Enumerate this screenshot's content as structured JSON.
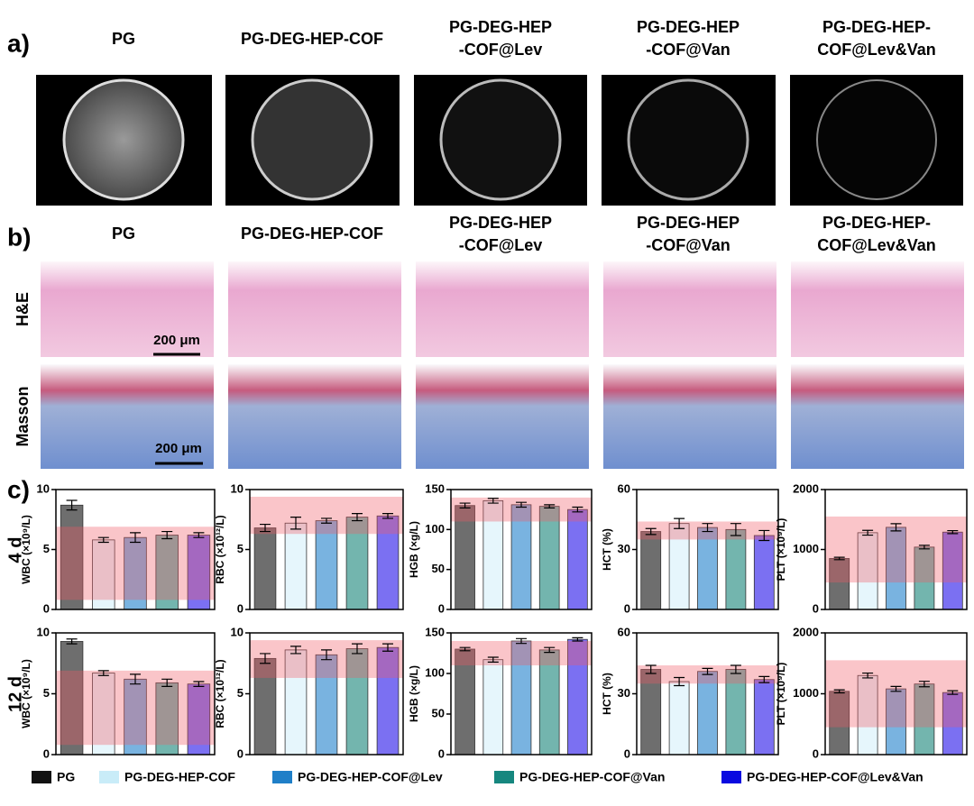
{
  "panel_labels": [
    "a)",
    "b)",
    "c)"
  ],
  "panel_a": {
    "titles": [
      [
        "PG"
      ],
      [
        "PG-DEG-HEP-COF"
      ],
      [
        "PG-DEG-HEP",
        "-COF@Lev"
      ],
      [
        "PG-DEG-HEP",
        "-COF@Van"
      ],
      [
        "PG-DEG-HEP-",
        "COF@Lev&Van"
      ]
    ]
  },
  "panel_b": {
    "titles": [
      [
        "PG"
      ],
      [
        "PG-DEG-HEP-COF"
      ],
      [
        "PG-DEG-HEP",
        "-COF@Lev"
      ],
      [
        "PG-DEG-HEP",
        "-COF@Van"
      ],
      [
        "PG-DEG-HEP-",
        "COF@Lev&Van"
      ]
    ],
    "row_labels": [
      "H&E",
      "Masson"
    ],
    "scale_bars": [
      "200 μm",
      "200 μm"
    ]
  },
  "row_labels": [
    "4 d",
    "12 d"
  ],
  "legend": [
    {
      "name": "PG",
      "color": "#111111"
    },
    {
      "name": "PG-DEG-HEP-COF",
      "color": "#c9ecf8"
    },
    {
      "name": "PG-DEG-HEP-COF@Lev",
      "color": "#1f7fc8"
    },
    {
      "name": "PG-DEG-HEP-COF@Van",
      "color": "#16877f"
    },
    {
      "name": "PG-DEG-HEP-COF@Lev&Van",
      "color": "#0a0ae0"
    }
  ],
  "chart_data": [
    {
      "type": "bar",
      "ylabel": "WBC (×10⁹/L)",
      "values": [
        8.7,
        5.8,
        6.0,
        6.2,
        6.2
      ],
      "errors": [
        0.4,
        0.2,
        0.4,
        0.3,
        0.2
      ],
      "colors": [
        "#6e6e6e",
        "#e6f6fc",
        "#79b3e0",
        "#73b5ae",
        "#7b70f2"
      ],
      "ylim": [
        0,
        10
      ],
      "yticks": [
        0,
        5,
        10
      ],
      "reference_range": [
        0.8,
        6.9
      ]
    },
    {
      "type": "bar",
      "ylabel": "RBC (×10¹²/L)",
      "values": [
        6.8,
        7.2,
        7.4,
        7.7,
        7.8
      ],
      "errors": [
        0.3,
        0.5,
        0.2,
        0.3,
        0.2
      ],
      "colors": [
        "#6e6e6e",
        "#e6f6fc",
        "#79b3e0",
        "#73b5ae",
        "#7b70f2"
      ],
      "ylim": [
        0,
        10
      ],
      "yticks": [
        0,
        5,
        10
      ],
      "reference_range": [
        6.3,
        9.4
      ]
    },
    {
      "type": "bar",
      "ylabel": "HGB (×g/L)",
      "values": [
        130,
        136,
        131,
        129,
        125
      ],
      "errors": [
        3,
        3,
        3,
        2,
        3
      ],
      "colors": [
        "#6e6e6e",
        "#e6f6fc",
        "#79b3e0",
        "#73b5ae",
        "#7b70f2"
      ],
      "ylim": [
        0,
        150
      ],
      "yticks": [
        0,
        50,
        100,
        150
      ],
      "reference_range": [
        110,
        140
      ]
    },
    {
      "type": "bar",
      "ylabel": "HCT (%)",
      "values": [
        39,
        43,
        41,
        40,
        37
      ],
      "errors": [
        1.5,
        2.5,
        2,
        3,
        2.5
      ],
      "colors": [
        "#6e6e6e",
        "#e6f6fc",
        "#79b3e0",
        "#73b5ae",
        "#7b70f2"
      ],
      "ylim": [
        0,
        60
      ],
      "yticks": [
        0,
        30,
        60
      ],
      "reference_range": [
        35,
        44
      ]
    },
    {
      "type": "bar",
      "ylabel": "PLT (×10⁹/L)",
      "values": [
        850,
        1280,
        1370,
        1040,
        1290
      ],
      "errors": [
        20,
        40,
        60,
        30,
        25
      ],
      "colors": [
        "#6e6e6e",
        "#e6f6fc",
        "#79b3e0",
        "#73b5ae",
        "#7b70f2"
      ],
      "ylim": [
        0,
        2000
      ],
      "yticks": [
        0,
        1000,
        2000
      ],
      "reference_range": [
        450,
        1550
      ]
    },
    {
      "type": "bar",
      "ylabel": "WBC (×10⁹/L)",
      "values": [
        9.3,
        6.7,
        6.2,
        5.9,
        5.8
      ],
      "errors": [
        0.2,
        0.2,
        0.4,
        0.3,
        0.2
      ],
      "colors": [
        "#6e6e6e",
        "#e6f6fc",
        "#79b3e0",
        "#73b5ae",
        "#7b70f2"
      ],
      "ylim": [
        0,
        10
      ],
      "yticks": [
        0,
        5,
        10
      ],
      "reference_range": [
        0.8,
        6.9
      ]
    },
    {
      "type": "bar",
      "ylabel": "RBC (×10¹²/L)",
      "values": [
        7.9,
        8.6,
        8.2,
        8.7,
        8.8
      ],
      "errors": [
        0.4,
        0.3,
        0.4,
        0.4,
        0.3
      ],
      "colors": [
        "#6e6e6e",
        "#e6f6fc",
        "#79b3e0",
        "#73b5ae",
        "#7b70f2"
      ],
      "ylim": [
        0,
        10
      ],
      "yticks": [
        0,
        5,
        10
      ],
      "reference_range": [
        6.3,
        9.4
      ]
    },
    {
      "type": "bar",
      "ylabel": "HGB (×g/L)",
      "values": [
        130,
        117,
        140,
        129,
        142
      ],
      "errors": [
        2,
        3,
        3,
        3,
        2
      ],
      "colors": [
        "#6e6e6e",
        "#e6f6fc",
        "#79b3e0",
        "#73b5ae",
        "#7b70f2"
      ],
      "ylim": [
        0,
        150
      ],
      "yticks": [
        0,
        50,
        100,
        150
      ],
      "reference_range": [
        110,
        140
      ]
    },
    {
      "type": "bar",
      "ylabel": "HCT (%)",
      "values": [
        42,
        36,
        41,
        42,
        37
      ],
      "errors": [
        2,
        2,
        1.5,
        2,
        1.5
      ],
      "colors": [
        "#6e6e6e",
        "#e6f6fc",
        "#79b3e0",
        "#73b5ae",
        "#7b70f2"
      ],
      "ylim": [
        0,
        60
      ],
      "yticks": [
        0,
        30,
        60
      ],
      "reference_range": [
        35,
        44
      ]
    },
    {
      "type": "bar",
      "ylabel": "PLT (×10⁹/L)",
      "values": [
        1040,
        1300,
        1080,
        1160,
        1020
      ],
      "errors": [
        25,
        40,
        40,
        45,
        30
      ],
      "colors": [
        "#6e6e6e",
        "#e6f6fc",
        "#79b3e0",
        "#73b5ae",
        "#7b70f2"
      ],
      "ylim": [
        0,
        2000
      ],
      "yticks": [
        0,
        1000,
        2000
      ],
      "reference_range": [
        450,
        1550
      ]
    }
  ]
}
